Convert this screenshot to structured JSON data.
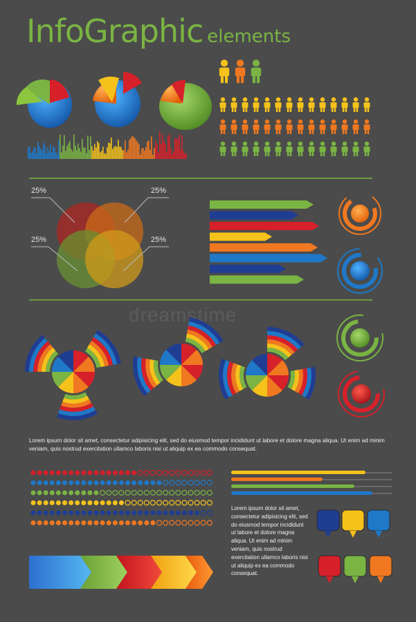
{
  "title": {
    "main": "InfoGraphic",
    "sub": "elements"
  },
  "watermark": "dreamstime",
  "venn": {
    "labels": [
      "25%",
      "25%",
      "25%",
      "25%"
    ]
  },
  "body_text": "Lorem ipsum dolor sit amet, consectetur adipisicing elit, sed do eiusmod tempor incididunt ut labore et dolore magna aliqua. Ut enim ad minim veniam, quis nostrud exercitation ullamco laboris nisi ut aliquip ex ea commodo consequat.",
  "side_text": "Lorem ipsum dolor sit amet, consectetur adipisicing elit, sed do eiusmod tempor incididunt ut labore et dolore magna aliqua. Ut enim ad minim veniam, quis nostrud exercitation ullamco laboris nisi ut aliquip ex ea commodo consequat.",
  "colors": {
    "red": "#d6202a",
    "orange": "#f07820",
    "yellow": "#f5c21b",
    "green": "#7ab443",
    "blue": "#1f78c8",
    "navy": "#1f3d93",
    "bg": "#4b4b4b"
  },
  "icons": [
    "person-icon",
    "speech-bubble-icon",
    "arrow-icon",
    "ring-icon",
    "pie-chart-icon"
  ]
}
